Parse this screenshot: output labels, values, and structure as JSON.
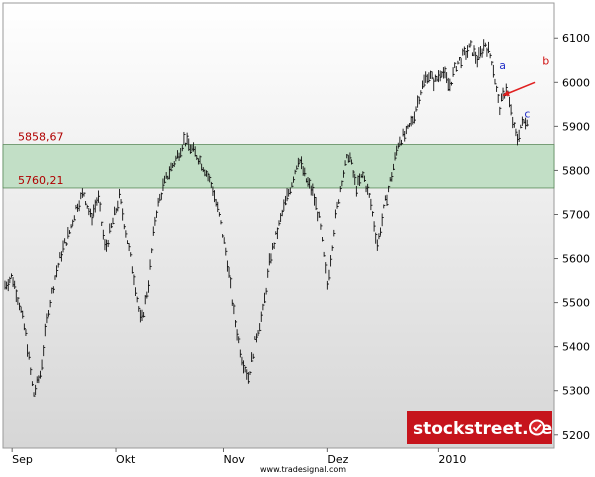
{
  "chart_data": {
    "type": "line",
    "instrument_style": "ohlc-bars",
    "grid": false,
    "ylim": [
      5170,
      6180
    ],
    "y_ticks": [
      5200,
      5300,
      5400,
      5500,
      5600,
      5700,
      5800,
      5900,
      6000,
      6100
    ],
    "x_ticks": [
      {
        "label": "Sep",
        "day": 2
      },
      {
        "label": "Okt",
        "day": 31
      },
      {
        "label": "Nov",
        "day": 61
      },
      {
        "label": "Dez",
        "day": 90
      },
      {
        "label": "2010",
        "day": 121
      }
    ],
    "x_day_range": [
      0,
      153
    ],
    "series": [
      {
        "values_note": "",
        "points": [
          [
            0,
            5540
          ],
          [
            2,
            5560
          ],
          [
            4,
            5500
          ],
          [
            6,
            5420
          ],
          [
            8,
            5290
          ],
          [
            10,
            5340
          ],
          [
            12,
            5480
          ],
          [
            14,
            5560
          ],
          [
            16,
            5620
          ],
          [
            18,
            5660
          ],
          [
            20,
            5720
          ],
          [
            22,
            5750
          ],
          [
            24,
            5690
          ],
          [
            26,
            5740
          ],
          [
            28,
            5620
          ],
          [
            30,
            5680
          ],
          [
            32,
            5740
          ],
          [
            34,
            5650
          ],
          [
            36,
            5560
          ],
          [
            38,
            5450
          ],
          [
            40,
            5540
          ],
          [
            42,
            5700
          ],
          [
            44,
            5760
          ],
          [
            46,
            5800
          ],
          [
            48,
            5830
          ],
          [
            50,
            5870
          ],
          [
            52,
            5850
          ],
          [
            54,
            5830
          ],
          [
            56,
            5800
          ],
          [
            58,
            5760
          ],
          [
            60,
            5690
          ],
          [
            62,
            5600
          ],
          [
            64,
            5470
          ],
          [
            66,
            5380
          ],
          [
            68,
            5330
          ],
          [
            70,
            5420
          ],
          [
            72,
            5480
          ],
          [
            74,
            5600
          ],
          [
            76,
            5660
          ],
          [
            78,
            5720
          ],
          [
            80,
            5770
          ],
          [
            82,
            5830
          ],
          [
            84,
            5780
          ],
          [
            86,
            5750
          ],
          [
            88,
            5680
          ],
          [
            90,
            5540
          ],
          [
            92,
            5680
          ],
          [
            94,
            5780
          ],
          [
            96,
            5840
          ],
          [
            98,
            5760
          ],
          [
            100,
            5790
          ],
          [
            102,
            5730
          ],
          [
            104,
            5630
          ],
          [
            106,
            5720
          ],
          [
            108,
            5790
          ],
          [
            110,
            5870
          ],
          [
            112,
            5880
          ],
          [
            114,
            5920
          ],
          [
            116,
            5980
          ],
          [
            118,
            6020
          ],
          [
            120,
            6000
          ],
          [
            122,
            6030
          ],
          [
            124,
            5990
          ],
          [
            126,
            6040
          ],
          [
            128,
            6060
          ],
          [
            130,
            6080
          ],
          [
            132,
            6050
          ],
          [
            134,
            6090
          ],
          [
            136,
            6050
          ],
          [
            138,
            5940
          ],
          [
            140,
            5990
          ],
          [
            142,
            5900
          ],
          [
            143,
            5870
          ],
          [
            144,
            5900
          ],
          [
            146,
            5920
          ]
        ]
      }
    ],
    "levels": [
      {
        "value": 5858.67,
        "label": "5858,67"
      },
      {
        "value": 5760.21,
        "label": "5760,21"
      }
    ],
    "band": {
      "low": 5760.21,
      "high": 5858.67,
      "color": "#c2dfc6"
    },
    "annotations": [
      {
        "label": "a",
        "day": 138,
        "value": 6030,
        "color": "#2430c8"
      },
      {
        "label": "b",
        "day": 150,
        "value": 6040,
        "color": "#d01010"
      },
      {
        "label": "c",
        "day": 145,
        "value": 5920,
        "color": "#2430c8"
      }
    ],
    "arrow": {
      "from_day": 148,
      "from_value": 6000,
      "to_day": 139,
      "to_value": 5970,
      "color": "#e02020"
    },
    "colors": {
      "bars": "#111111",
      "band_fill": "#c2dfc6",
      "band_edge": "#5a8a5a",
      "level_text": "#b00000",
      "bg_top": "#ffffff",
      "bg_bottom": "#d6d6d6"
    }
  },
  "branding": {
    "logo_text": "stockstreet.de",
    "logo_bg": "#c6141c",
    "source": "www.tradesignal.com"
  }
}
